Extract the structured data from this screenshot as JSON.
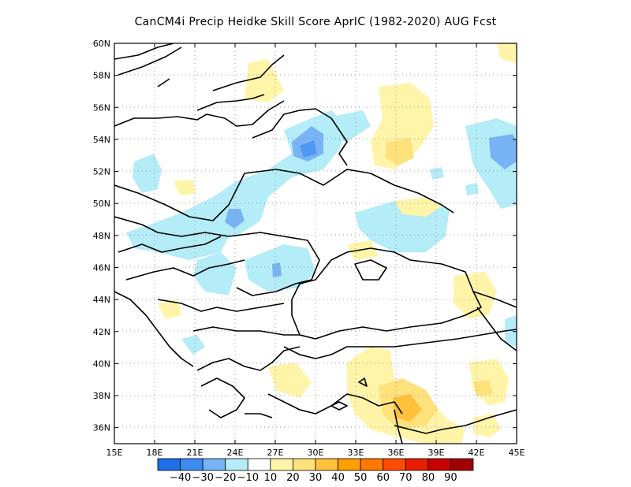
{
  "title": "CanCM4i Precip Heidke Skill Score AprIC (1982-2020) AUG Fcst",
  "map": {
    "lon_range": [
      15,
      45
    ],
    "lat_range": [
      35,
      60
    ],
    "lon_ticks": [
      "15E",
      "18E",
      "21E",
      "24E",
      "27E",
      "30E",
      "33E",
      "36E",
      "39E",
      "42E",
      "45E"
    ],
    "lat_ticks": [
      "36N",
      "38N",
      "40N",
      "42N",
      "44N",
      "46N",
      "48N",
      "50N",
      "52N",
      "54N",
      "56N",
      "58N",
      "60N"
    ],
    "grid": "dotted"
  },
  "colorbar": {
    "colors": [
      "#1e6fe8",
      "#3c8cf0",
      "#78b4f5",
      "#b4ecf8",
      "#ffffff",
      "#fff4a8",
      "#ffe17c",
      "#ffc03c",
      "#ffa000",
      "#ff7800",
      "#ff4a00",
      "#e81e00",
      "#c80000",
      "#a00000"
    ],
    "labels": [
      "-40",
      "-30",
      "-20",
      "-10",
      "10",
      "20",
      "30",
      "40",
      "50",
      "60",
      "70",
      "80",
      "90"
    ]
  },
  "colors": {
    "light_blue": "#b4ecf8",
    "mid_blue": "#78b4f5",
    "light_yellow": "#fff4a8",
    "yellow": "#ffe17c",
    "orange": "#ffc03c"
  }
}
